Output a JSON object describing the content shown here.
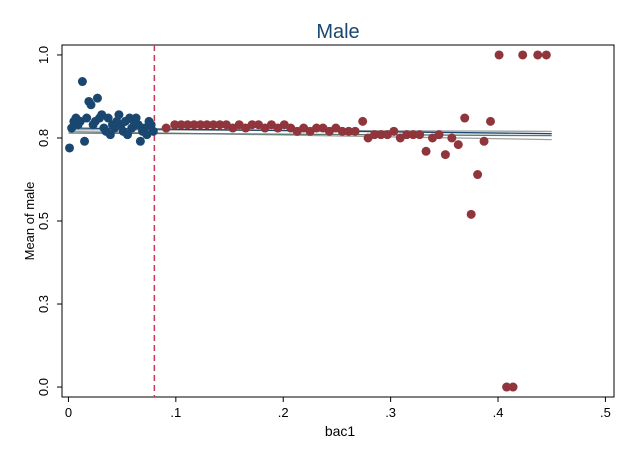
{
  "chart_data": {
    "type": "scatter",
    "title": "Male",
    "xlabel": "bac1",
    "ylabel": "Mean of male",
    "xlim": [
      -0.006,
      0.508
    ],
    "ylim": [
      -0.03,
      1.03
    ],
    "x_ticks": [
      0,
      0.1,
      0.2,
      0.3,
      0.4,
      0.5
    ],
    "x_tick_labels": [
      "0",
      ".1",
      ".2",
      ".3",
      ".4",
      ".5"
    ],
    "y_ticks": [
      0.0,
      0.25,
      0.5,
      0.75,
      1.0
    ],
    "y_tick_labels": [
      "0.0",
      "0.3",
      "0.5",
      "0.8",
      "1.0"
    ],
    "cutoff": 0.08,
    "series": [
      {
        "color": "#1a476f",
        "points": [
          [
            0.001,
            0.72
          ],
          [
            0.003,
            0.78
          ],
          [
            0.005,
            0.8
          ],
          [
            0.007,
            0.81
          ],
          [
            0.009,
            0.79
          ],
          [
            0.011,
            0.8
          ],
          [
            0.013,
            0.92
          ],
          [
            0.015,
            0.74
          ],
          [
            0.017,
            0.81
          ],
          [
            0.019,
            0.86
          ],
          [
            0.021,
            0.85
          ],
          [
            0.023,
            0.79
          ],
          [
            0.025,
            0.8
          ],
          [
            0.027,
            0.87
          ],
          [
            0.029,
            0.81
          ],
          [
            0.031,
            0.82
          ],
          [
            0.033,
            0.78
          ],
          [
            0.035,
            0.77
          ],
          [
            0.037,
            0.81
          ],
          [
            0.039,
            0.76
          ],
          [
            0.041,
            0.79
          ],
          [
            0.043,
            0.78
          ],
          [
            0.045,
            0.8
          ],
          [
            0.047,
            0.82
          ],
          [
            0.049,
            0.79
          ],
          [
            0.051,
            0.77
          ],
          [
            0.053,
            0.8
          ],
          [
            0.055,
            0.76
          ],
          [
            0.057,
            0.81
          ],
          [
            0.059,
            0.78
          ],
          [
            0.061,
            0.8
          ],
          [
            0.063,
            0.81
          ],
          [
            0.065,
            0.79
          ],
          [
            0.067,
            0.74
          ],
          [
            0.069,
            0.77
          ],
          [
            0.071,
            0.78
          ],
          [
            0.073,
            0.76
          ],
          [
            0.075,
            0.8
          ],
          [
            0.077,
            0.79
          ],
          [
            0.079,
            0.77
          ]
        ]
      },
      {
        "color": "#90353b",
        "points": [
          [
            0.091,
            0.78
          ],
          [
            0.099,
            0.79
          ],
          [
            0.105,
            0.79
          ],
          [
            0.111,
            0.79
          ],
          [
            0.117,
            0.79
          ],
          [
            0.123,
            0.79
          ],
          [
            0.129,
            0.79
          ],
          [
            0.135,
            0.79
          ],
          [
            0.141,
            0.79
          ],
          [
            0.147,
            0.79
          ],
          [
            0.153,
            0.78
          ],
          [
            0.159,
            0.79
          ],
          [
            0.165,
            0.78
          ],
          [
            0.171,
            0.79
          ],
          [
            0.177,
            0.79
          ],
          [
            0.183,
            0.78
          ],
          [
            0.189,
            0.79
          ],
          [
            0.195,
            0.78
          ],
          [
            0.201,
            0.79
          ],
          [
            0.207,
            0.78
          ],
          [
            0.213,
            0.77
          ],
          [
            0.219,
            0.78
          ],
          [
            0.225,
            0.77
          ],
          [
            0.231,
            0.78
          ],
          [
            0.237,
            0.78
          ],
          [
            0.243,
            0.77
          ],
          [
            0.249,
            0.78
          ],
          [
            0.255,
            0.77
          ],
          [
            0.261,
            0.77
          ],
          [
            0.267,
            0.77
          ],
          [
            0.274,
            0.8
          ],
          [
            0.279,
            0.75
          ],
          [
            0.285,
            0.76
          ],
          [
            0.291,
            0.76
          ],
          [
            0.297,
            0.76
          ],
          [
            0.303,
            0.77
          ],
          [
            0.309,
            0.75
          ],
          [
            0.315,
            0.76
          ],
          [
            0.321,
            0.76
          ],
          [
            0.327,
            0.76
          ],
          [
            0.333,
            0.71
          ],
          [
            0.339,
            0.75
          ],
          [
            0.345,
            0.76
          ],
          [
            0.351,
            0.7
          ],
          [
            0.357,
            0.75
          ],
          [
            0.363,
            0.73
          ],
          [
            0.369,
            0.81
          ],
          [
            0.375,
            0.52
          ],
          [
            0.381,
            0.64
          ],
          [
            0.387,
            0.74
          ],
          [
            0.393,
            0.8
          ],
          [
            0.401,
            1.0
          ],
          [
            0.408,
            0.0
          ],
          [
            0.414,
            0.0
          ],
          [
            0.423,
            1.0
          ],
          [
            0.437,
            1.0
          ],
          [
            0.445,
            1.0
          ]
        ]
      }
    ],
    "fit_lines": [
      {
        "color": "#a0a0a0",
        "x": [
          0.0,
          0.45
        ],
        "y": [
          0.775,
          0.77
        ]
      },
      {
        "color": "#a0a0a0",
        "x": [
          0.0,
          0.45
        ],
        "y": [
          0.77,
          0.745
        ]
      },
      {
        "color": "#55786f",
        "x": [
          0.0,
          0.45
        ],
        "y": [
          0.765,
          0.757
        ]
      },
      {
        "color": "#1a476f",
        "x": [
          0.0,
          0.45
        ],
        "y": [
          0.78,
          0.763
        ]
      }
    ],
    "cutoff_color": "#c8385a",
    "title_color": "#1a476f"
  }
}
